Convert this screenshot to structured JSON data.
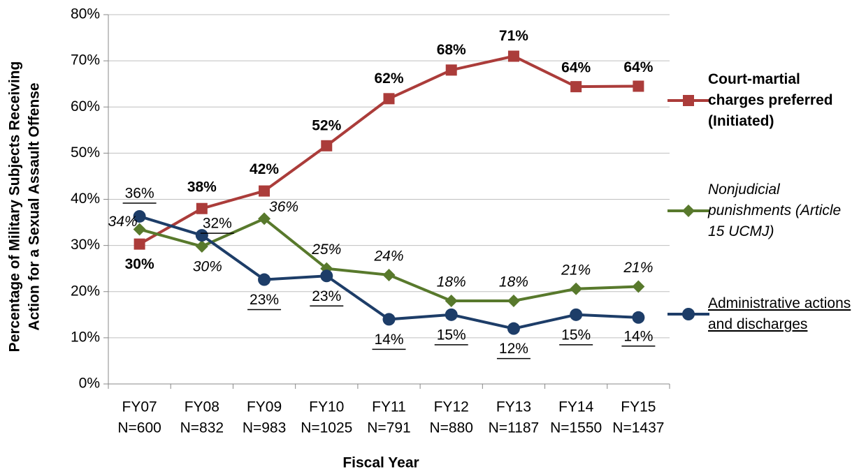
{
  "chart_data": {
    "type": "line",
    "x_label": "Fiscal Year",
    "y_label": [
      "Percentage of Military Subjects Receiving",
      "Action for a Sexual Assault Offense"
    ],
    "categories": [
      "FY07",
      "FY08",
      "FY09",
      "FY10",
      "FY11",
      "FY12",
      "FY13",
      "FY14",
      "FY15"
    ],
    "category_sublabels": [
      "N=600",
      "N=832",
      "N=983",
      "N=1025",
      "N=791",
      "N=880",
      "N=1187",
      "N=1550",
      "N=1437"
    ],
    "ylim": [
      0,
      80
    ],
    "yticks": [
      {
        "value": 0,
        "label": "0%"
      },
      {
        "value": 10,
        "label": "10%"
      },
      {
        "value": 20,
        "label": "20%"
      },
      {
        "value": 30,
        "label": "30%"
      },
      {
        "value": 40,
        "label": "40%"
      },
      {
        "value": 50,
        "label": "50%"
      },
      {
        "value": 60,
        "label": "60%"
      },
      {
        "value": 70,
        "label": "70%"
      },
      {
        "value": 80,
        "label": "80%"
      }
    ],
    "grid": true,
    "legend": "right",
    "series": [
      {
        "name": "Court-martial charges preferred (Initiated)",
        "color": "#ab3c3a",
        "marker": "square",
        "label_style": "bold",
        "values": [
          30.3,
          38,
          41.8,
          51.6,
          61.8,
          68,
          71,
          64.4,
          64.5
        ],
        "value_labels": [
          "30%",
          "38%",
          "42%",
          "52%",
          "62%",
          "68%",
          "71%",
          "64%",
          "64%"
        ]
      },
      {
        "name": "Nonjudicial punishments (Article 15 UCMJ)",
        "color": "#58792c",
        "marker": "diamond",
        "label_style": "italic",
        "values": [
          33.5,
          29.8,
          35.8,
          25,
          23.6,
          18,
          18,
          20.6,
          21.1
        ],
        "value_labels": [
          "34%",
          "30%",
          "36%",
          "25%",
          "24%",
          "18%",
          "18%",
          "21%",
          "21%"
        ]
      },
      {
        "name": "Administrative actions and discharges",
        "color": "#1d3d68",
        "marker": "circle",
        "label_style": "underline",
        "values": [
          36.3,
          32.2,
          22.6,
          23.4,
          14,
          15,
          12,
          15,
          14.4
        ],
        "value_labels": [
          "36%",
          "32%",
          "23%",
          "23%",
          "14%",
          "15%",
          "12%",
          "15%",
          "14%"
        ]
      }
    ]
  }
}
